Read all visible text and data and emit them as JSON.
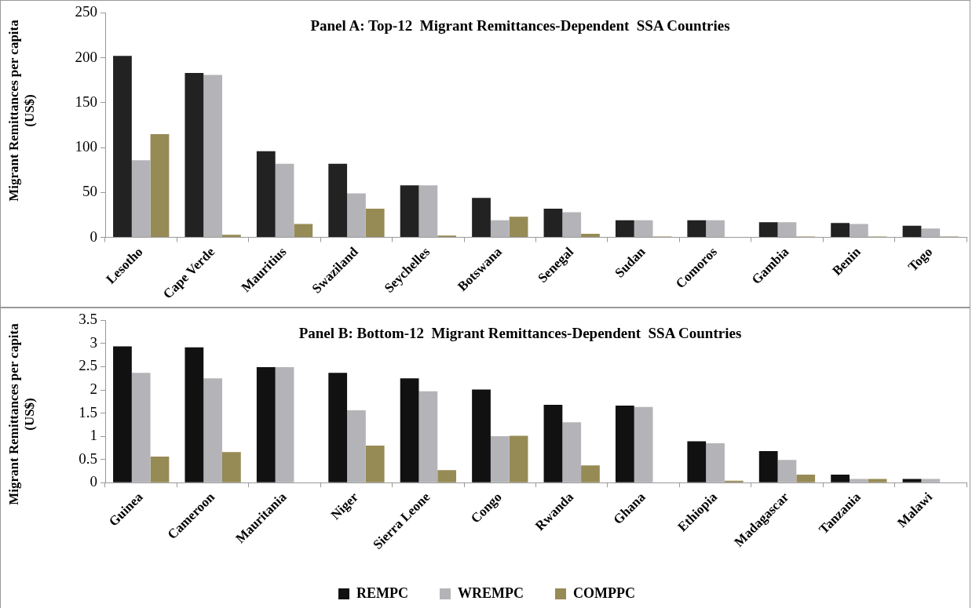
{
  "chart_data": [
    {
      "type": "bar",
      "title": "Panel A: Top-12  Migrant Remittances-Dependent  SSA Countries",
      "ylabel": "Migrant Remittances per capita (US$)",
      "categories": [
        "Lesotho",
        "Cape Verde",
        "Mauritius",
        "Swaziland",
        "Seychelles",
        "Botswana",
        "Senegal",
        "Sudan",
        "Comoros",
        "Gambia",
        "Benin",
        "Togo"
      ],
      "series": [
        {
          "color": "#222222",
          "values": [
            202,
            183,
            96,
            82,
            58,
            44,
            32,
            19,
            19,
            17,
            16,
            13
          ]
        },
        {
          "color": "#b4b4b8",
          "values": [
            86,
            181,
            82,
            49,
            58,
            19,
            28,
            19,
            19,
            17,
            15,
            10
          ]
        },
        {
          "color": "#968b55",
          "values": [
            115,
            3,
            15,
            32,
            2,
            23,
            4,
            1,
            0,
            1,
            1,
            1
          ]
        }
      ],
      "ylim": [
        0,
        250
      ],
      "yticks": [
        0,
        50,
        100,
        150,
        200,
        250
      ],
      "grid": false,
      "legend": false
    },
    {
      "type": "bar",
      "title": "Panel B: Bottom-12  Migrant Remittances-Dependent  SSA Countries",
      "ylabel": "Migrant Remittances per capita (US$)",
      "categories": [
        "Guinea",
        "Cameroon",
        "Mauritania",
        "Niger",
        "Sierra Leone",
        "Congo",
        "Rwanda",
        "Ghana",
        "Ethiopia",
        "Madagascar",
        "Tanzania",
        "Malawi"
      ],
      "series": [
        {
          "name": "REMPC",
          "color": "#111111",
          "values": [
            2.94,
            2.92,
            2.49,
            2.37,
            2.25,
            2.01,
            1.68,
            1.66,
            0.89,
            0.68,
            0.17,
            0.08
          ]
        },
        {
          "name": "WREMPC",
          "color": "#b4b4b8",
          "values": [
            2.37,
            2.25,
            2.49,
            1.56,
            1.97,
            1.0,
            1.3,
            1.63,
            0.85,
            0.49,
            0.08,
            0.08
          ]
        },
        {
          "name": "COMPPC",
          "color": "#968b55",
          "values": [
            0.56,
            0.66,
            0,
            0.8,
            0.27,
            1.01,
            0.37,
            0,
            0.04,
            0.17,
            0.08,
            0
          ]
        }
      ],
      "ylim": [
        0,
        3.5
      ],
      "yticks": [
        0,
        0.5,
        1,
        1.5,
        2,
        2.5,
        3,
        3.5
      ],
      "grid": false,
      "legend": "bottom"
    }
  ]
}
